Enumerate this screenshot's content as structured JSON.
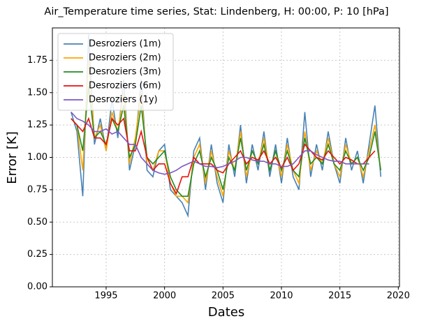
{
  "chart_data": {
    "type": "line",
    "title": "Air_Temperature time series, Stat: Lindenberg, H: 00:00, P: 10 [hPa]",
    "x_label": "Dates",
    "y_label": "Error [K]",
    "x": [
      1992,
      1992.5,
      1993,
      1993.5,
      1994,
      1994.5,
      1995,
      1995.5,
      1996,
      1996.5,
      1997,
      1997.5,
      1998,
      1998.5,
      1999,
      1999.5,
      2000,
      2000.5,
      2001,
      2001.5,
      2002,
      2002.5,
      2003,
      2003.5,
      2004,
      2004.5,
      2005,
      2005.5,
      2006,
      2006.5,
      2007,
      2007.5,
      2008,
      2008.5,
      2009,
      2009.5,
      2010,
      2010.5,
      2011,
      2011.5,
      2012,
      2012.5,
      2013,
      2013.5,
      2014,
      2014.5,
      2015,
      2015.5,
      2016,
      2016.5,
      2017,
      2017.5,
      2018,
      2018.5
    ],
    "series": [
      {
        "name": "Desroziers (1m)",
        "color": "#4682b4",
        "values": [
          1.35,
          1.2,
          0.7,
          1.95,
          1.1,
          1.3,
          1.05,
          1.45,
          1.15,
          1.6,
          0.9,
          1.1,
          1.6,
          0.9,
          0.85,
          1.05,
          1.1,
          0.75,
          0.7,
          0.65,
          0.55,
          1.05,
          1.15,
          0.75,
          1.1,
          0.8,
          0.65,
          1.1,
          0.85,
          1.25,
          0.8,
          1.1,
          0.9,
          1.2,
          0.85,
          1.1,
          0.8,
          1.15,
          0.85,
          0.75,
          1.35,
          0.85,
          1.1,
          0.9,
          1.2,
          0.95,
          0.8,
          1.15,
          0.9,
          1.05,
          0.8,
          1.1,
          1.4,
          0.85
        ]
      },
      {
        "name": "Desroziers (2m)",
        "color": "#ffa500",
        "values": [
          1.3,
          1.25,
          0.9,
          1.75,
          1.15,
          1.25,
          1.05,
          1.35,
          1.2,
          1.5,
          0.95,
          1.15,
          1.5,
          0.95,
          0.9,
          1.05,
          1.05,
          0.8,
          0.7,
          0.7,
          0.65,
          1.0,
          1.1,
          0.8,
          1.05,
          0.85,
          0.7,
          1.05,
          0.9,
          1.2,
          0.85,
          1.05,
          0.95,
          1.15,
          0.9,
          1.05,
          0.85,
          1.1,
          0.9,
          0.8,
          1.2,
          0.9,
          1.05,
          0.95,
          1.15,
          0.95,
          0.85,
          1.1,
          0.95,
          1.0,
          0.85,
          1.05,
          1.25,
          0.9
        ]
      },
      {
        "name": "Desroziers (3m)",
        "color": "#228b22",
        "values": [
          1.3,
          1.25,
          1.05,
          1.55,
          1.15,
          1.2,
          1.1,
          1.3,
          1.2,
          1.4,
          1.0,
          1.1,
          1.4,
          1.0,
          0.95,
          1.0,
          1.05,
          0.85,
          0.75,
          0.7,
          0.7,
          0.95,
          1.05,
          0.85,
          1.0,
          0.9,
          0.75,
          1.0,
          0.9,
          1.15,
          0.9,
          1.05,
          0.95,
          1.1,
          0.9,
          1.05,
          0.9,
          1.05,
          0.9,
          0.85,
          1.15,
          0.95,
          1.0,
          0.95,
          1.1,
          0.95,
          0.9,
          1.05,
          0.95,
          1.0,
          0.9,
          1.0,
          1.2,
          0.9
        ]
      },
      {
        "name": "Desroziers (6m)",
        "color": "#e8110f",
        "values": [
          1.3,
          1.25,
          1.2,
          1.3,
          1.15,
          1.15,
          1.1,
          1.3,
          1.25,
          1.3,
          1.05,
          1.05,
          1.2,
          1.0,
          0.9,
          0.95,
          0.95,
          0.8,
          0.72,
          0.85,
          0.85,
          1.0,
          0.95,
          0.95,
          0.95,
          0.9,
          0.88,
          0.95,
          1.0,
          1.05,
          0.95,
          1.0,
          0.98,
          1.05,
          0.95,
          1.0,
          0.92,
          1.0,
          0.9,
          0.95,
          1.1,
          1.05,
          1.0,
          0.98,
          1.05,
          1.0,
          0.95,
          1.0,
          0.98,
          0.95,
          0.95,
          1.0,
          1.05,
          null
        ]
      },
      {
        "name": "Desroziers (1y)",
        "color": "#7e57c2",
        "values": [
          1.35,
          1.3,
          1.28,
          1.25,
          1.2,
          1.2,
          1.22,
          1.18,
          1.2,
          1.15,
          1.1,
          1.1,
          1.0,
          0.95,
          0.9,
          0.88,
          0.87,
          0.88,
          0.9,
          0.93,
          0.95,
          0.97,
          0.95,
          0.93,
          0.93,
          0.92,
          0.93,
          0.95,
          0.97,
          1.0,
          1.0,
          0.98,
          0.97,
          0.97,
          0.95,
          0.95,
          0.93,
          0.93,
          0.95,
          1.0,
          1.05,
          1.05,
          1.02,
          1.0,
          0.98,
          0.97,
          0.97,
          0.95,
          0.95,
          0.95,
          0.95,
          0.95,
          null,
          null
        ]
      }
    ],
    "xlim": [
      1990.4,
      2020.1
    ],
    "ylim": [
      0,
      2.0
    ],
    "xticks": [
      1995,
      2000,
      2005,
      2010,
      2015,
      2020
    ],
    "yticks": [
      {
        "value": 0,
        "label": "0.00"
      },
      {
        "value": 0.25,
        "label": "0.25"
      },
      {
        "value": 0.5,
        "label": "0.50"
      },
      {
        "value": 0.75,
        "label": "0.75"
      },
      {
        "value": 1,
        "label": "1.00"
      },
      {
        "value": 1.25,
        "label": "1.25"
      },
      {
        "value": 1.5,
        "label": "1.50"
      },
      {
        "value": 1.75,
        "label": "1.75"
      }
    ],
    "grid": true,
    "legend": "upper left"
  }
}
